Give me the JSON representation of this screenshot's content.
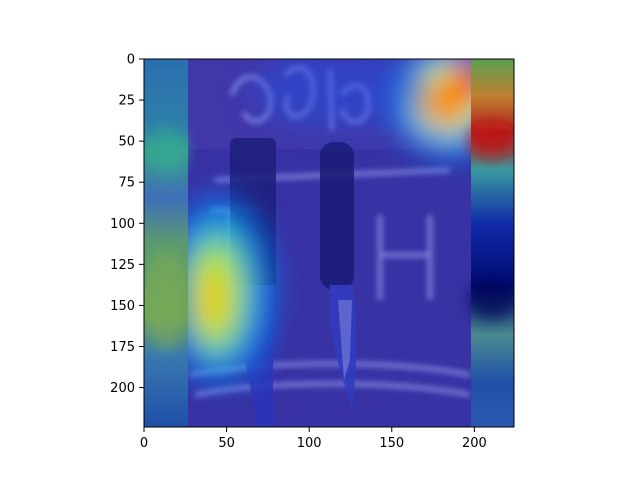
{
  "chart_data": {
    "type": "heatmap",
    "title": "",
    "xlabel": "",
    "ylabel": "",
    "xlim": [
      0,
      224
    ],
    "ylim": [
      224,
      0
    ],
    "xticks": [
      0,
      50,
      100,
      150,
      200
    ],
    "yticks": [
      0,
      25,
      50,
      75,
      100,
      125,
      150,
      175,
      200
    ],
    "grid": false,
    "legend": "none",
    "overlay": "activation heatmap (jet colormap) over a photo of two knives against a neon sign background",
    "colormap": [
      "#00007f",
      "#0000ff",
      "#007fff",
      "#00ffff",
      "#7fff7f",
      "#ffff00",
      "#ff7f00",
      "#ff0000",
      "#7f0000"
    ]
  }
}
